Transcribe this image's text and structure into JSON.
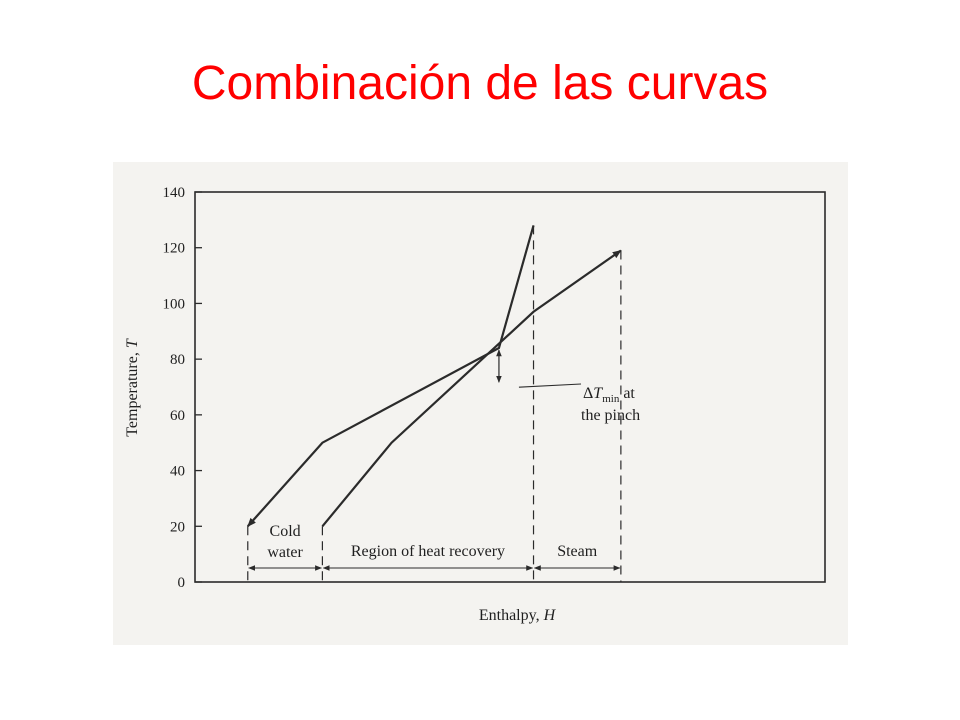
{
  "slide": {
    "title": "Combinación de las curvas"
  },
  "colors": {
    "title": "#ff0000",
    "ink": "#2b2b2b",
    "figure_bg": "#f4f3f0"
  },
  "chart_data": {
    "type": "line",
    "xlabel": {
      "main": "Enthalpy, ",
      "var": "H"
    },
    "ylabel": {
      "main": "Temperature, ",
      "var": "T"
    },
    "ylim": [
      0,
      140
    ],
    "yticks": [
      "0",
      "20",
      "40",
      "60",
      "80",
      "100",
      "120",
      "140"
    ],
    "x_units": "arbitrary",
    "xlim": [
      0,
      10
    ],
    "series": [
      {
        "role": "hot composite curve",
        "x": [
          1.45,
          3.5,
          8.35,
          9.3
        ],
        "y": [
          20,
          50,
          84,
          128
        ],
        "arrow": "start"
      },
      {
        "role": "cold composite curve",
        "x": [
          3.5,
          5.4,
          9.3,
          11.7
        ],
        "y": [
          20,
          50,
          97,
          119
        ],
        "arrow": "end"
      }
    ],
    "pinch": {
      "x": 8.35,
      "y_top": 84,
      "y_bottom": 71
    },
    "annotations": {
      "pinch_label": {
        "delta": "Δ",
        "T": "T",
        "sub": "min",
        "after": " at",
        "line2": "the pinch"
      },
      "regions": [
        {
          "line1": "Cold",
          "line2": "water",
          "x0": 1.45,
          "x1": 3.5
        },
        {
          "line1": "Region of heat recovery",
          "line2": "",
          "x0": 3.5,
          "x1": 13.3
        },
        {
          "line1": "Steam",
          "line2": "",
          "x0": 13.3,
          "x1": 15.8
        }
      ]
    }
  }
}
